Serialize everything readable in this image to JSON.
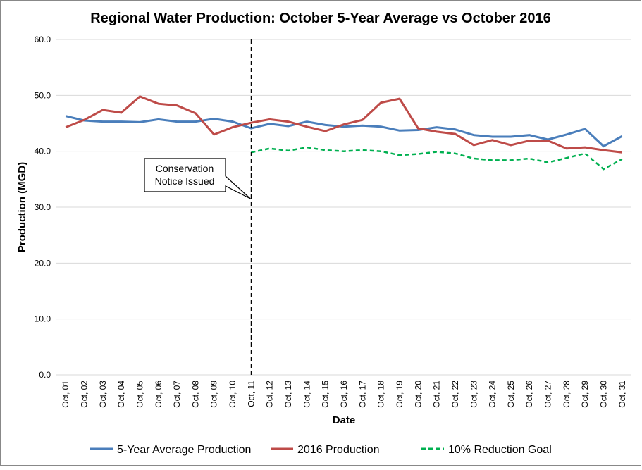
{
  "chart_data": {
    "type": "line",
    "title": "Regional Water Production: October 5-Year Average vs October 2016",
    "x_label": "Date",
    "y_label": "Production (MGD)",
    "categories": [
      "Oct, 01",
      "Oct, 02",
      "Oct, 03",
      "Oct, 04",
      "Oct, 05",
      "Oct, 06",
      "Oct, 07",
      "Oct, 08",
      "Oct, 09",
      "Oct, 10",
      "Oct, 11",
      "Oct, 12",
      "Oct, 13",
      "Oct, 14",
      "Oct, 15",
      "Oct, 16",
      "Oct, 17",
      "Oct, 18",
      "Oct, 19",
      "Oct, 20",
      "Oct, 21",
      "Oct, 22",
      "Oct, 23",
      "Oct, 24",
      "Oct, 25",
      "Oct, 26",
      "Oct, 27",
      "Oct, 28",
      "Oct, 29",
      "Oct, 30",
      "Oct, 31"
    ],
    "series": [
      {
        "name": "5-Year Average Production",
        "color": "#4a7ebb",
        "dashed": false,
        "values": [
          46.3,
          45.5,
          45.3,
          45.3,
          45.2,
          45.7,
          45.3,
          45.3,
          45.8,
          45.3,
          44.1,
          44.9,
          44.5,
          45.3,
          44.7,
          44.4,
          44.6,
          44.4,
          43.7,
          43.8,
          44.3,
          43.9,
          42.9,
          42.6,
          42.6,
          42.9,
          42.1,
          43.0,
          44.0,
          40.9,
          42.7
        ]
      },
      {
        "name": "2016 Production",
        "color": "#be4b48",
        "dashed": false,
        "values": [
          44.3,
          45.6,
          47.4,
          46.9,
          49.8,
          48.5,
          48.2,
          46.8,
          43.0,
          44.3,
          45.1,
          45.7,
          45.3,
          44.4,
          43.6,
          44.8,
          45.6,
          48.7,
          49.4,
          44.1,
          43.5,
          43.1,
          41.1,
          42.0,
          41.1,
          41.9,
          41.9,
          40.5,
          40.7,
          40.2,
          39.8
        ]
      },
      {
        "name": "10% Reduction Goal",
        "color": "#00b050",
        "dashed": true,
        "values": [
          null,
          null,
          null,
          null,
          null,
          null,
          null,
          null,
          null,
          null,
          39.8,
          40.5,
          40.1,
          40.7,
          40.2,
          40.0,
          40.2,
          40.0,
          39.3,
          39.5,
          39.9,
          39.6,
          38.7,
          38.4,
          38.4,
          38.7,
          38.0,
          38.8,
          39.6,
          36.8,
          38.6
        ]
      }
    ],
    "ylim": [
      0,
      60
    ],
    "yticks": [
      {
        "value": 0,
        "label": "0.0"
      },
      {
        "value": 10,
        "label": "10.0"
      },
      {
        "value": 20,
        "label": "20.0"
      },
      {
        "value": 30,
        "label": "30.0"
      },
      {
        "value": 40,
        "label": "40.0"
      },
      {
        "value": 50,
        "label": "50.0"
      },
      {
        "value": 60,
        "label": "60.0"
      }
    ],
    "grid": true,
    "legend": "bottom",
    "annotation": {
      "lines": [
        "Conservation",
        "Notice Issued"
      ],
      "category": "Oct, 11"
    }
  }
}
